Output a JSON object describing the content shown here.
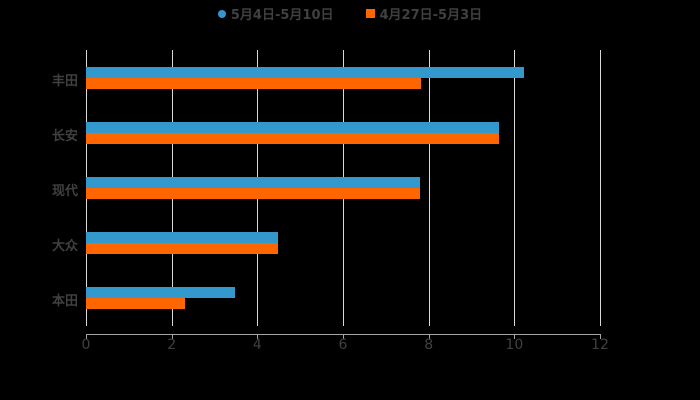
{
  "chart_data": {
    "type": "bar",
    "orientation": "horizontal",
    "title": "",
    "xlabel": "",
    "ylabel": "",
    "xlim": [
      0,
      12
    ],
    "x_ticks": [
      "0",
      "2",
      "4",
      "6",
      "8",
      "10",
      "12"
    ],
    "grid": true,
    "legend_position": "top",
    "categories": [
      "丰田",
      "长安",
      "现代",
      "大众",
      "本田"
    ],
    "series": [
      {
        "name": "5月4日-5月10日",
        "color": "#3399cc",
        "values": [
          10.23,
          9.64,
          7.8,
          4.48,
          3.48
        ]
      },
      {
        "name": "4月27日-5月3日",
        "color": "#ff6600",
        "values": [
          7.82,
          9.64,
          7.8,
          4.48,
          2.31
        ]
      }
    ]
  }
}
